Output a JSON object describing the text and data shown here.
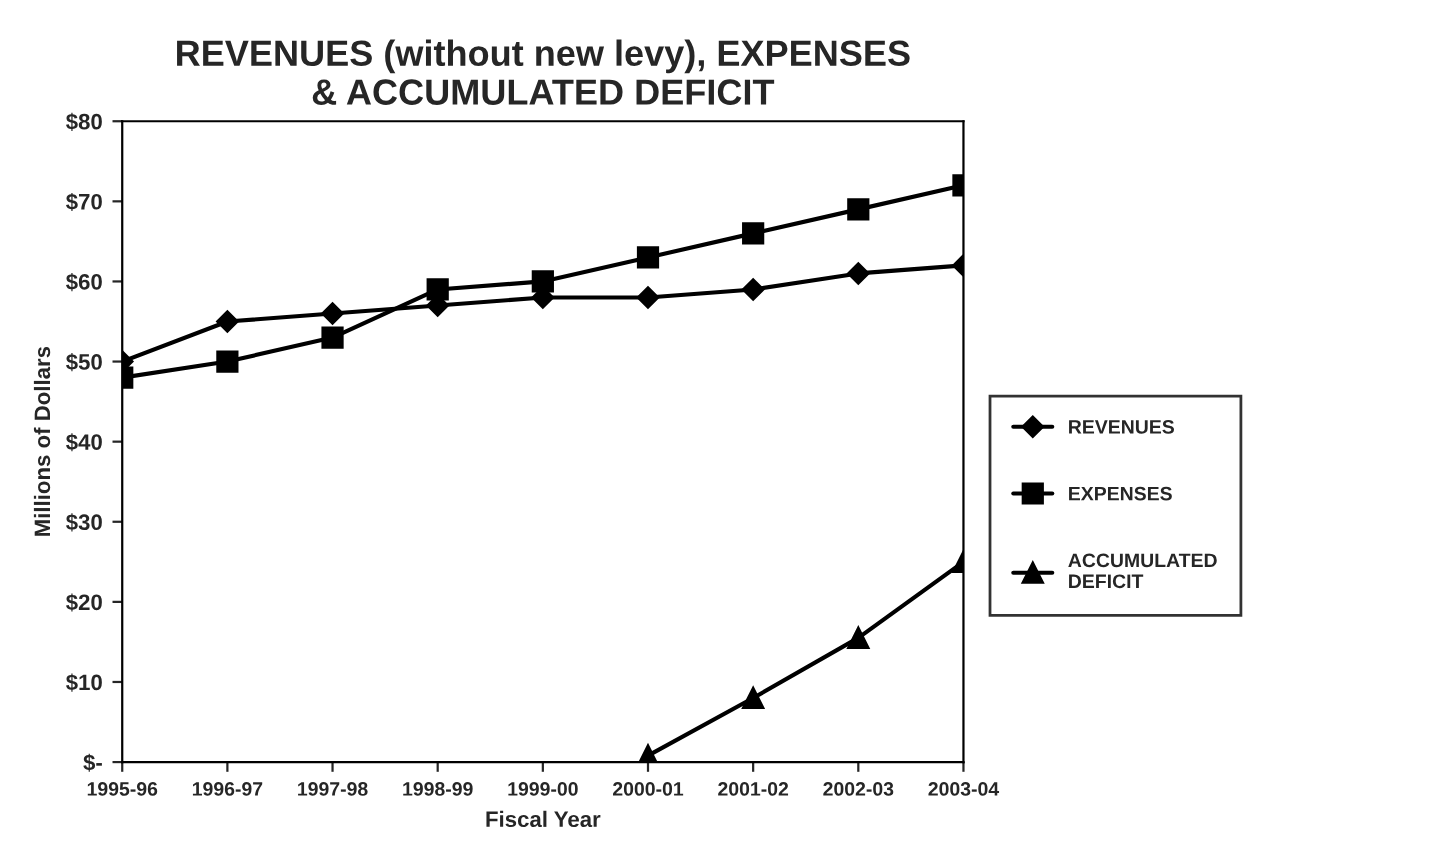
{
  "chart_data": {
    "type": "line",
    "title": "REVENUES (without new levy), EXPENSES\n& ACCUMULATED DEFICIT",
    "xlabel": "Fiscal Year",
    "ylabel": "Millions of Dollars",
    "categories": [
      "1995-96",
      "1996-97",
      "1997-98",
      "1998-99",
      "1999-00",
      "2000-01",
      "2001-02",
      "2002-03",
      "2003-04"
    ],
    "series": [
      {
        "name": "REVENUES",
        "color": "#000000",
        "marker": "diamond",
        "values": [
          50,
          55,
          56,
          57,
          58,
          58,
          59,
          61,
          62
        ]
      },
      {
        "name": "EXPENSES",
        "color": "#000000",
        "marker": "square",
        "values": [
          48,
          50,
          53,
          59,
          60,
          63,
          66,
          69,
          72
        ]
      },
      {
        "name": "ACCUMULATED\nDEFICIT",
        "color": "#000000",
        "marker": "triangle",
        "values": [
          null,
          null,
          null,
          null,
          null,
          0.8,
          8,
          15.5,
          25
        ]
      }
    ],
    "ylim": [
      0,
      80
    ],
    "yticks": [
      {
        "value": 0,
        "label": "$-"
      },
      {
        "value": 10,
        "label": "$10"
      },
      {
        "value": 20,
        "label": "$20"
      },
      {
        "value": 30,
        "label": "$30"
      },
      {
        "value": 40,
        "label": "$40"
      },
      {
        "value": 50,
        "label": "$50"
      },
      {
        "value": 60,
        "label": "$60"
      },
      {
        "value": 70,
        "label": "$70"
      },
      {
        "value": 80,
        "label": "$80"
      }
    ],
    "grid": false,
    "legend": "right",
    "line_style": "solid"
  }
}
